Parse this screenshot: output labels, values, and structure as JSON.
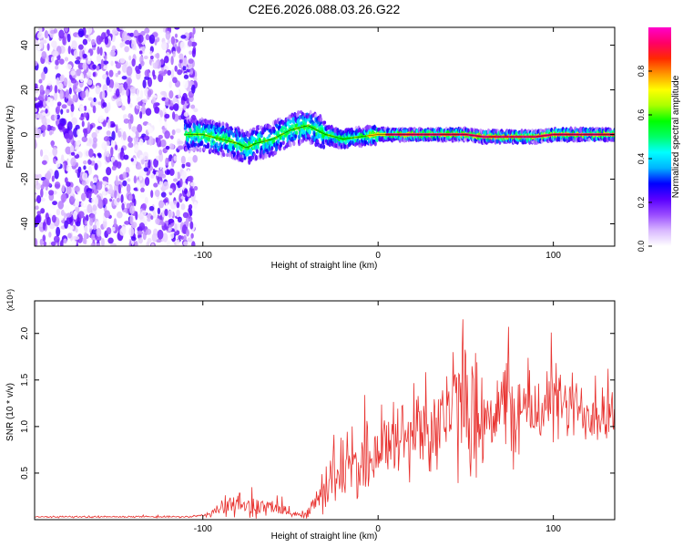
{
  "title": "C2E6.2026.088.03.26.G22",
  "chart_data": [
    {
      "type": "heatmap",
      "xlabel": "Height of straight line (km)",
      "ylabel": "Frequency (Hz)",
      "xlim": [
        -196,
        135
      ],
      "ylim": [
        -50,
        48
      ],
      "x_ticks": [
        -100,
        0,
        100
      ],
      "y_ticks": [
        -40,
        -20,
        0,
        20,
        40
      ],
      "colorbar": {
        "label": "Normalized spectral amplitude",
        "range": [
          0,
          1
        ],
        "ticks": [
          0.0,
          0.2,
          0.4,
          0.6,
          0.8
        ],
        "colors": [
          "#ffffff",
          "#d9b8ff",
          "#9a4dff",
          "#5a00ff",
          "#0000ff",
          "#00b4ff",
          "#00ffff",
          "#00ff66",
          "#00ff00",
          "#aaff00",
          "#ffff00",
          "#ff9900",
          "#ff2a00",
          "#ff0066",
          "#ff00cc"
        ]
      },
      "ridge": {
        "x": [
          -110,
          -100,
          -90,
          -80,
          -75,
          -70,
          -60,
          -55,
          -50,
          -45,
          -40,
          -35,
          -30,
          -25,
          -20,
          -10,
          0,
          10,
          20,
          30,
          40,
          50,
          60,
          70,
          80,
          90,
          100,
          110,
          120,
          135
        ],
        "y": [
          0,
          0,
          -2,
          -4,
          -6,
          -4,
          -2,
          0,
          2,
          3,
          4,
          2,
          0,
          -1,
          -2,
          -1,
          0,
          0,
          0,
          0,
          0,
          0,
          -1,
          -1,
          -1,
          -1,
          0,
          0,
          0,
          0
        ]
      },
      "noise_region_x": [
        -196,
        -104
      ]
    },
    {
      "type": "line",
      "xlabel": "Height of straight line (km)",
      "ylabel": "SNR (10 * v/v)",
      "y_scale_label": "(x10⁴)",
      "xlim": [
        -196,
        135
      ],
      "ylim": [
        0,
        2.35
      ],
      "x_ticks": [
        -100,
        0,
        100
      ],
      "y_ticks": [
        0.5,
        1.0,
        1.5,
        2.0
      ],
      "y_tick_labels": [
        "0.5",
        "1.0",
        "1.5",
        "2.0"
      ],
      "color": "#e8322f",
      "envelope": {
        "x": [
          -196,
          -110,
          -100,
          -90,
          -80,
          -70,
          -60,
          -50,
          -45,
          -40,
          -35,
          -30,
          -25,
          -20,
          -15,
          -10,
          0,
          10,
          20,
          30,
          40,
          50,
          60,
          70,
          80,
          90,
          100,
          110,
          120,
          135
        ],
        "mean": [
          0.03,
          0.03,
          0.04,
          0.12,
          0.16,
          0.14,
          0.12,
          0.08,
          0.05,
          0.08,
          0.2,
          0.35,
          0.5,
          0.55,
          0.55,
          0.6,
          0.75,
          0.85,
          0.95,
          1.05,
          1.15,
          1.2,
          1.15,
          1.2,
          1.15,
          1.2,
          1.25,
          1.2,
          1.15,
          1.15
        ],
        "spread": [
          0.01,
          0.01,
          0.02,
          0.1,
          0.15,
          0.12,
          0.1,
          0.06,
          0.04,
          0.06,
          0.2,
          0.3,
          0.4,
          0.4,
          0.4,
          0.4,
          0.45,
          0.5,
          0.55,
          0.6,
          0.7,
          0.75,
          0.6,
          0.6,
          0.55,
          0.5,
          0.45,
          0.4,
          0.35,
          0.3
        ]
      }
    }
  ]
}
